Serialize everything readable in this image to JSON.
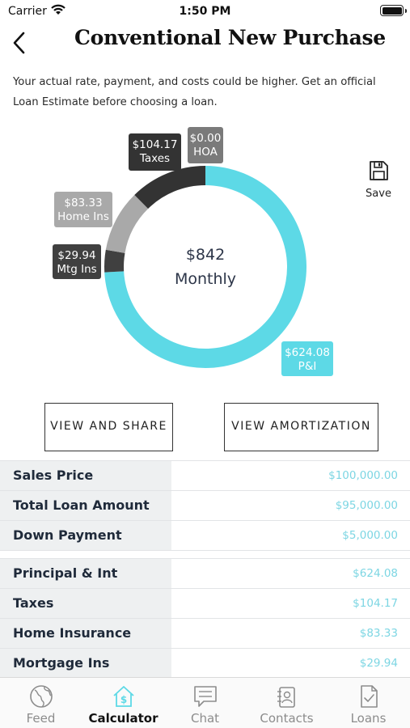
{
  "status_bar": {
    "carrier": "Carrier",
    "time": "1:50 PM"
  },
  "header": {
    "title": "Conventional New Purchase",
    "back_icon": "chevron-left-icon"
  },
  "disclaimer": "Your actual rate, payment, and costs could be higher. Get an official Loan Estimate before choosing a loan.",
  "save": {
    "label": "Save",
    "icon": "floppy-disk-icon"
  },
  "chart_data": {
    "type": "pie",
    "style": "donut",
    "center_value": "$842",
    "center_label": "Monthly",
    "slices": [
      {
        "name": "P&I",
        "value": 624.08,
        "label": "$624.08",
        "color": "#5dd9e6"
      },
      {
        "name": "Mtg Ins",
        "value": 29.94,
        "label": "$29.94",
        "color": "#404040"
      },
      {
        "name": "Home Ins",
        "value": 83.33,
        "label": "$83.33",
        "color": "#a9a9a9"
      },
      {
        "name": "Taxes",
        "value": 104.17,
        "label": "$104.17",
        "color": "#333333"
      },
      {
        "name": "HOA",
        "value": 0.0,
        "label": "$0.00",
        "color": "#7a7a7a"
      }
    ]
  },
  "buttons": {
    "view_share": "VIEW AND SHARE",
    "view_amortization": "VIEW AMORTIZATION"
  },
  "loan_rows": [
    {
      "label": "Sales Price",
      "value": "$100,000.00"
    },
    {
      "label": "Total Loan Amount",
      "value": "$95,000.00"
    },
    {
      "label": "Down Payment",
      "value": "$5,000.00"
    }
  ],
  "payment_rows": [
    {
      "label": "Principal & Int",
      "value": "$624.08"
    },
    {
      "label": "Taxes",
      "value": "$104.17"
    },
    {
      "label": "Home Insurance",
      "value": "$83.33"
    },
    {
      "label": "Mortgage Ins",
      "value": "$29.94"
    }
  ],
  "tabs": [
    {
      "label": "Feed",
      "icon": "globe-icon",
      "active": false
    },
    {
      "label": "Calculator",
      "icon": "calculator-house-icon",
      "active": true
    },
    {
      "label": "Chat",
      "icon": "chat-bubble-icon",
      "active": false
    },
    {
      "label": "Contacts",
      "icon": "contacts-icon",
      "active": false
    },
    {
      "label": "Loans",
      "icon": "document-check-icon",
      "active": false
    }
  ],
  "colors": {
    "accent": "#5dd9e6",
    "value_text": "#7dd6e3",
    "label_bg": "#eef0f1"
  }
}
